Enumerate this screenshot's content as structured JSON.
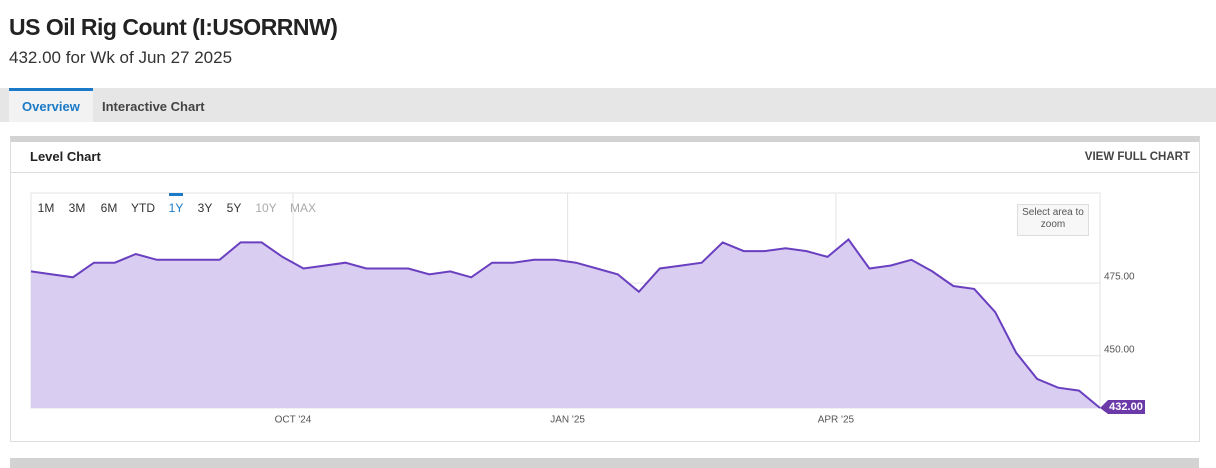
{
  "header": {
    "title": "US Oil Rig Count (I:USORRNW)",
    "subtitle": "432.00 for Wk of Jun 27 2025"
  },
  "tabs": [
    "Overview",
    "Interactive Chart"
  ],
  "active_tab": 0,
  "panel": {
    "title": "Level Chart",
    "action": "VIEW FULL CHART",
    "zoom_hint": "Select area to zoom"
  },
  "ranges": [
    "1M",
    "3M",
    "6M",
    "YTD",
    "1Y",
    "3Y",
    "5Y",
    "10Y",
    "MAX"
  ],
  "active_range": 4,
  "disabled_ranges": [
    7,
    8
  ],
  "chart_data": {
    "type": "area",
    "color": "#6a3fc0",
    "fill": "#d9cdf1",
    "label_color": "#6b3aa8",
    "values": [
      479,
      478,
      477,
      482,
      482,
      485,
      483,
      483,
      483,
      483,
      489,
      489,
      484,
      480,
      481,
      482,
      480,
      480,
      480,
      478,
      479,
      477,
      482,
      482,
      483,
      483,
      482,
      480,
      478,
      472,
      480,
      481,
      482,
      489,
      486,
      486,
      487,
      486,
      484,
      490,
      480,
      481,
      483,
      479,
      474,
      473,
      465,
      451,
      442,
      439,
      438,
      432
    ],
    "value_labels": [
      null,
      null,
      null,
      null,
      null,
      null,
      null,
      null,
      null,
      null,
      null,
      null,
      null,
      null,
      null,
      null,
      null,
      null,
      null,
      null,
      null,
      null,
      null,
      null,
      null,
      null,
      null,
      null,
      null,
      null,
      null,
      null,
      null,
      null,
      null,
      null,
      null,
      null,
      null,
      null,
      null,
      null,
      null,
      null,
      null,
      null,
      null,
      null,
      null,
      null,
      null,
      "432.00"
    ],
    "xlim": [
      0,
      51
    ],
    "xticks": [
      {
        "value": 12.5,
        "label": "OCT '24"
      },
      {
        "value": 25.6,
        "label": "JAN '25"
      },
      {
        "value": 38.4,
        "label": "APR '25"
      }
    ],
    "ylim": [
      432,
      506
    ],
    "yticks": [
      {
        "value": 450,
        "label": "450.00"
      },
      {
        "value": 475,
        "label": "475.00"
      }
    ],
    "grid": true
  }
}
